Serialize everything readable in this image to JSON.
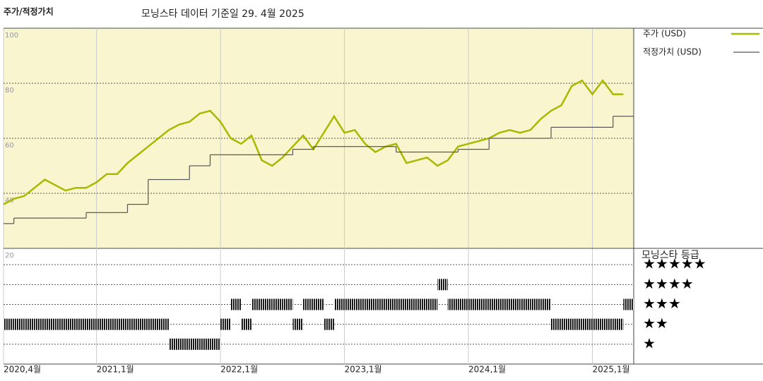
{
  "chart_data": [
    {
      "type": "line",
      "title": "주가/적정가치",
      "subtitle": "모닝스타 데이터 기준일 29. 4월 2025",
      "x": [
        "2020-04",
        "2020-05",
        "2020-06",
        "2020-07",
        "2020-08",
        "2020-09",
        "2020-10",
        "2020-11",
        "2020-12",
        "2021-01",
        "2021-02",
        "2021-03",
        "2021-04",
        "2021-05",
        "2021-06",
        "2021-07",
        "2021-08",
        "2021-09",
        "2021-10",
        "2021-11",
        "2021-12",
        "2022-01",
        "2022-02",
        "2022-03",
        "2022-04",
        "2022-05",
        "2022-06",
        "2022-07",
        "2022-08",
        "2022-09",
        "2022-10",
        "2022-11",
        "2022-12",
        "2023-01",
        "2023-02",
        "2023-03",
        "2023-04",
        "2023-05",
        "2023-06",
        "2023-07",
        "2023-08",
        "2023-09",
        "2023-10",
        "2023-11",
        "2023-12",
        "2024-01",
        "2024-02",
        "2024-03",
        "2024-04",
        "2024-05",
        "2024-06",
        "2024-07",
        "2024-08",
        "2024-09",
        "2024-10",
        "2024-11",
        "2024-12",
        "2025-01",
        "2025-02",
        "2025-03",
        "2025-04"
      ],
      "series": [
        {
          "name": "주가 (USD)",
          "color": "#a9b800",
          "style": "line",
          "values": [
            36,
            38,
            39,
            42,
            45,
            43,
            41,
            42,
            42,
            44,
            47,
            47,
            51,
            54,
            57,
            60,
            63,
            65,
            66,
            69,
            70,
            66,
            60,
            58,
            61,
            52,
            50,
            53,
            57,
            61,
            56,
            62,
            68,
            62,
            63,
            58,
            55,
            57,
            58,
            51,
            52,
            53,
            50,
            52,
            57,
            58,
            59,
            60,
            62,
            63,
            62,
            63,
            67,
            70,
            72,
            79,
            81,
            76,
            81,
            76,
            76
          ]
        },
        {
          "name": "적정가치 (USD)",
          "color": "#555555",
          "style": "step",
          "values": [
            29,
            31,
            31,
            31,
            31,
            31,
            31,
            31,
            33,
            33,
            33,
            33,
            36,
            36,
            45,
            45,
            45,
            45,
            50,
            50,
            54,
            54,
            54,
            54,
            54,
            54,
            54,
            54,
            56,
            56,
            57,
            57,
            57,
            57,
            57,
            57,
            57,
            57,
            55,
            55,
            55,
            55,
            55,
            55,
            56,
            56,
            56,
            60,
            60,
            60,
            60,
            60,
            60,
            64,
            64,
            64,
            64,
            64,
            64,
            68,
            68
          ]
        }
      ],
      "xlim": [
        "2020-04",
        "2025-05"
      ],
      "ylim": [
        20,
        100
      ],
      "yticks": [
        20,
        40,
        60,
        80,
        100
      ],
      "grid": true,
      "background": "#f8f5cf"
    },
    {
      "type": "rating",
      "title": "모닝스타 등급",
      "x": [
        "2020-04",
        "2020-05",
        "2020-06",
        "2020-07",
        "2020-08",
        "2020-09",
        "2020-10",
        "2020-11",
        "2020-12",
        "2021-01",
        "2021-02",
        "2021-03",
        "2021-04",
        "2021-05",
        "2021-06",
        "2021-07",
        "2021-08",
        "2021-09",
        "2021-10",
        "2021-11",
        "2021-12",
        "2022-01",
        "2022-02",
        "2022-03",
        "2022-04",
        "2022-05",
        "2022-06",
        "2022-07",
        "2022-08",
        "2022-09",
        "2022-10",
        "2022-11",
        "2022-12",
        "2023-01",
        "2023-02",
        "2023-03",
        "2023-04",
        "2023-05",
        "2023-06",
        "2023-07",
        "2023-08",
        "2023-09",
        "2023-10",
        "2023-11",
        "2023-12",
        "2024-01",
        "2024-02",
        "2024-03",
        "2024-04",
        "2024-05",
        "2024-06",
        "2024-07",
        "2024-08",
        "2024-09",
        "2024-10",
        "2024-11",
        "2024-12",
        "2025-01",
        "2025-02",
        "2025-03",
        "2025-04"
      ],
      "values": [
        2,
        2,
        2,
        2,
        2,
        2,
        2,
        2,
        2,
        2,
        2,
        2,
        2,
        2,
        2,
        2,
        1,
        1,
        1,
        1,
        1,
        2,
        3,
        2,
        3,
        3,
        3,
        3,
        2,
        3,
        3,
        2,
        3,
        3,
        3,
        3,
        3,
        3,
        3,
        3,
        3,
        3,
        4,
        3,
        3,
        3,
        3,
        3,
        3,
        3,
        3,
        3,
        3,
        2,
        2,
        2,
        2,
        2,
        2,
        2,
        3
      ],
      "color": "#000000",
      "xlim": [
        "2020-04",
        "2025-05"
      ],
      "xticks": [
        {
          "value": "2020-04",
          "label": "2020,4월"
        },
        {
          "value": "2021-01",
          "label": "2021,1월"
        },
        {
          "value": "2022-01",
          "label": "2022,1월"
        },
        {
          "value": "2023-01",
          "label": "2023,1월"
        },
        {
          "value": "2024-01",
          "label": "2024,1월"
        },
        {
          "value": "2025-01",
          "label": "2025,1월"
        }
      ],
      "ylim": [
        0,
        6
      ],
      "yticks": [
        {
          "value": 5,
          "label": "★★★★★"
        },
        {
          "value": 4,
          "label": "★★★★"
        },
        {
          "value": 3,
          "label": "★★★"
        },
        {
          "value": 2,
          "label": "★★"
        },
        {
          "value": 1,
          "label": "★"
        }
      ]
    }
  ]
}
